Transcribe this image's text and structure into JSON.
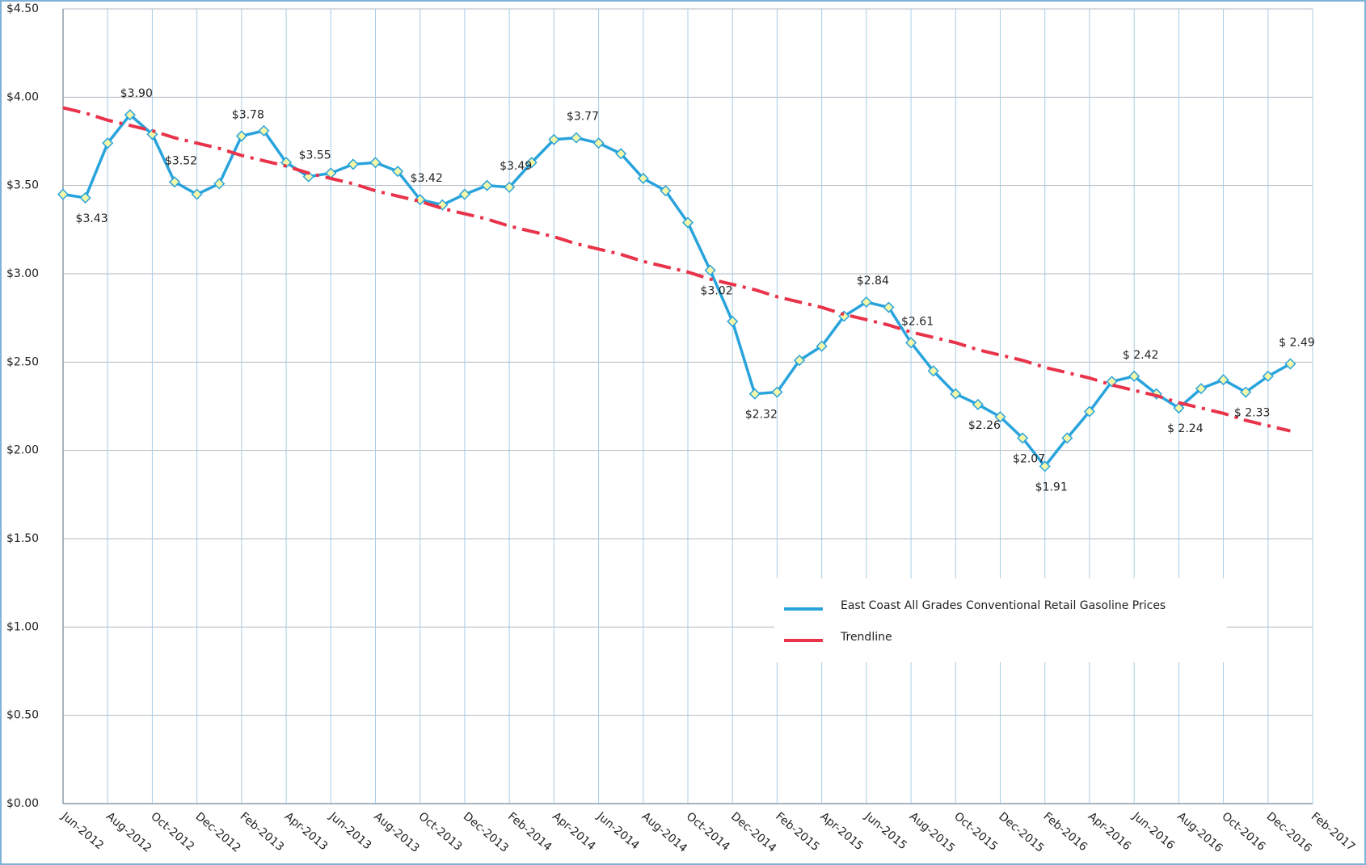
{
  "chart_data": {
    "type": "line",
    "categories": [
      "Jun-2012",
      null,
      "Aug-2012",
      null,
      "Oct-2012",
      null,
      "Dec-2012",
      null,
      "Feb-2013",
      null,
      "Apr-2013",
      null,
      "Jun-2013",
      null,
      "Aug-2013",
      null,
      "Oct-2013",
      null,
      "Dec-2013",
      null,
      "Feb-2014",
      null,
      "Apr-2014",
      null,
      "Jun-2014",
      null,
      "Aug-2014",
      null,
      "Oct-2014",
      null,
      "Dec-2014",
      null,
      "Feb-2015",
      null,
      "Apr-2015",
      null,
      "Jun-2015",
      null,
      "Aug-2015",
      null,
      "Oct-2015",
      null,
      "Dec-2015",
      null,
      "Feb-2016",
      null,
      "Apr-2016",
      null,
      "Jun-2016",
      null,
      "Aug-2016",
      null,
      "Oct-2016",
      null,
      "Dec-2016",
      null,
      "Feb-2017"
    ],
    "series": [
      {
        "name": "East Coast All Grades Conventional Retail Gasoline Prices",
        "color": "#29a3dc",
        "values": [
          3.45,
          3.43,
          3.74,
          3.9,
          3.79,
          3.52,
          3.45,
          3.51,
          3.78,
          3.81,
          3.63,
          3.55,
          3.57,
          3.62,
          3.63,
          3.58,
          3.42,
          3.39,
          3.45,
          3.5,
          3.49,
          3.63,
          3.76,
          3.77,
          3.74,
          3.68,
          3.54,
          3.47,
          3.29,
          3.02,
          2.73,
          2.32,
          2.33,
          2.51,
          2.59,
          2.76,
          2.84,
          2.81,
          2.61,
          2.45,
          2.32,
          2.26,
          2.19,
          2.07,
          1.91,
          2.07,
          2.22,
          2.39,
          2.42,
          2.32,
          2.24,
          2.35,
          2.4,
          2.33,
          2.42,
          2.49,
          null
        ],
        "value_labels": [
          null,
          "$3.43",
          null,
          "$3.90",
          null,
          "$3.52",
          null,
          null,
          "$3.78",
          null,
          null,
          "$3.55",
          null,
          null,
          null,
          null,
          "$3.42",
          null,
          null,
          null,
          "$3.49",
          null,
          null,
          "$3.77",
          null,
          null,
          null,
          null,
          null,
          "$3.02",
          null,
          "$2.32",
          null,
          null,
          null,
          null,
          "$2.84",
          null,
          "$2.61",
          null,
          null,
          "$2.26",
          null,
          "$2.07",
          "$1.91",
          null,
          null,
          null,
          "$ 2.42",
          null,
          "$ 2.24",
          null,
          null,
          "$ 2.33",
          null,
          "$ 2.49",
          null
        ]
      },
      {
        "name": "Trendline",
        "color": "#e8334a",
        "values": [
          3.94,
          3.91,
          3.87,
          3.84,
          3.81,
          3.77,
          3.74,
          3.71,
          3.67,
          3.64,
          3.61,
          3.57,
          3.54,
          3.51,
          3.47,
          3.44,
          3.41,
          3.37,
          3.34,
          3.31,
          3.27,
          3.24,
          3.21,
          3.17,
          3.14,
          3.11,
          3.07,
          3.04,
          3.01,
          2.97,
          2.94,
          2.91,
          2.87,
          2.84,
          2.81,
          2.77,
          2.74,
          2.71,
          2.67,
          2.64,
          2.61,
          2.57,
          2.54,
          2.51,
          2.47,
          2.44,
          2.41,
          2.37,
          2.34,
          2.31,
          2.27,
          2.24,
          2.21,
          2.17,
          2.14,
          2.11,
          null
        ]
      }
    ],
    "ylim": [
      0,
      4.5
    ],
    "yticks": [
      {
        "value": 0,
        "label": "$0.00"
      },
      {
        "value": 0.5,
        "label": "$0.50"
      },
      {
        "value": 1,
        "label": "$1.00"
      },
      {
        "value": 1.5,
        "label": "$1.50"
      },
      {
        "value": 2,
        "label": "$2.00"
      },
      {
        "value": 2.5,
        "label": "$2.50"
      },
      {
        "value": 3,
        "label": "$3.00"
      },
      {
        "value": 3.5,
        "label": "$3.50"
      },
      {
        "value": 4,
        "label": "$4.00"
      },
      {
        "value": 4.5,
        "label": "$4.50"
      }
    ],
    "grid": true,
    "legend": "lower right"
  }
}
